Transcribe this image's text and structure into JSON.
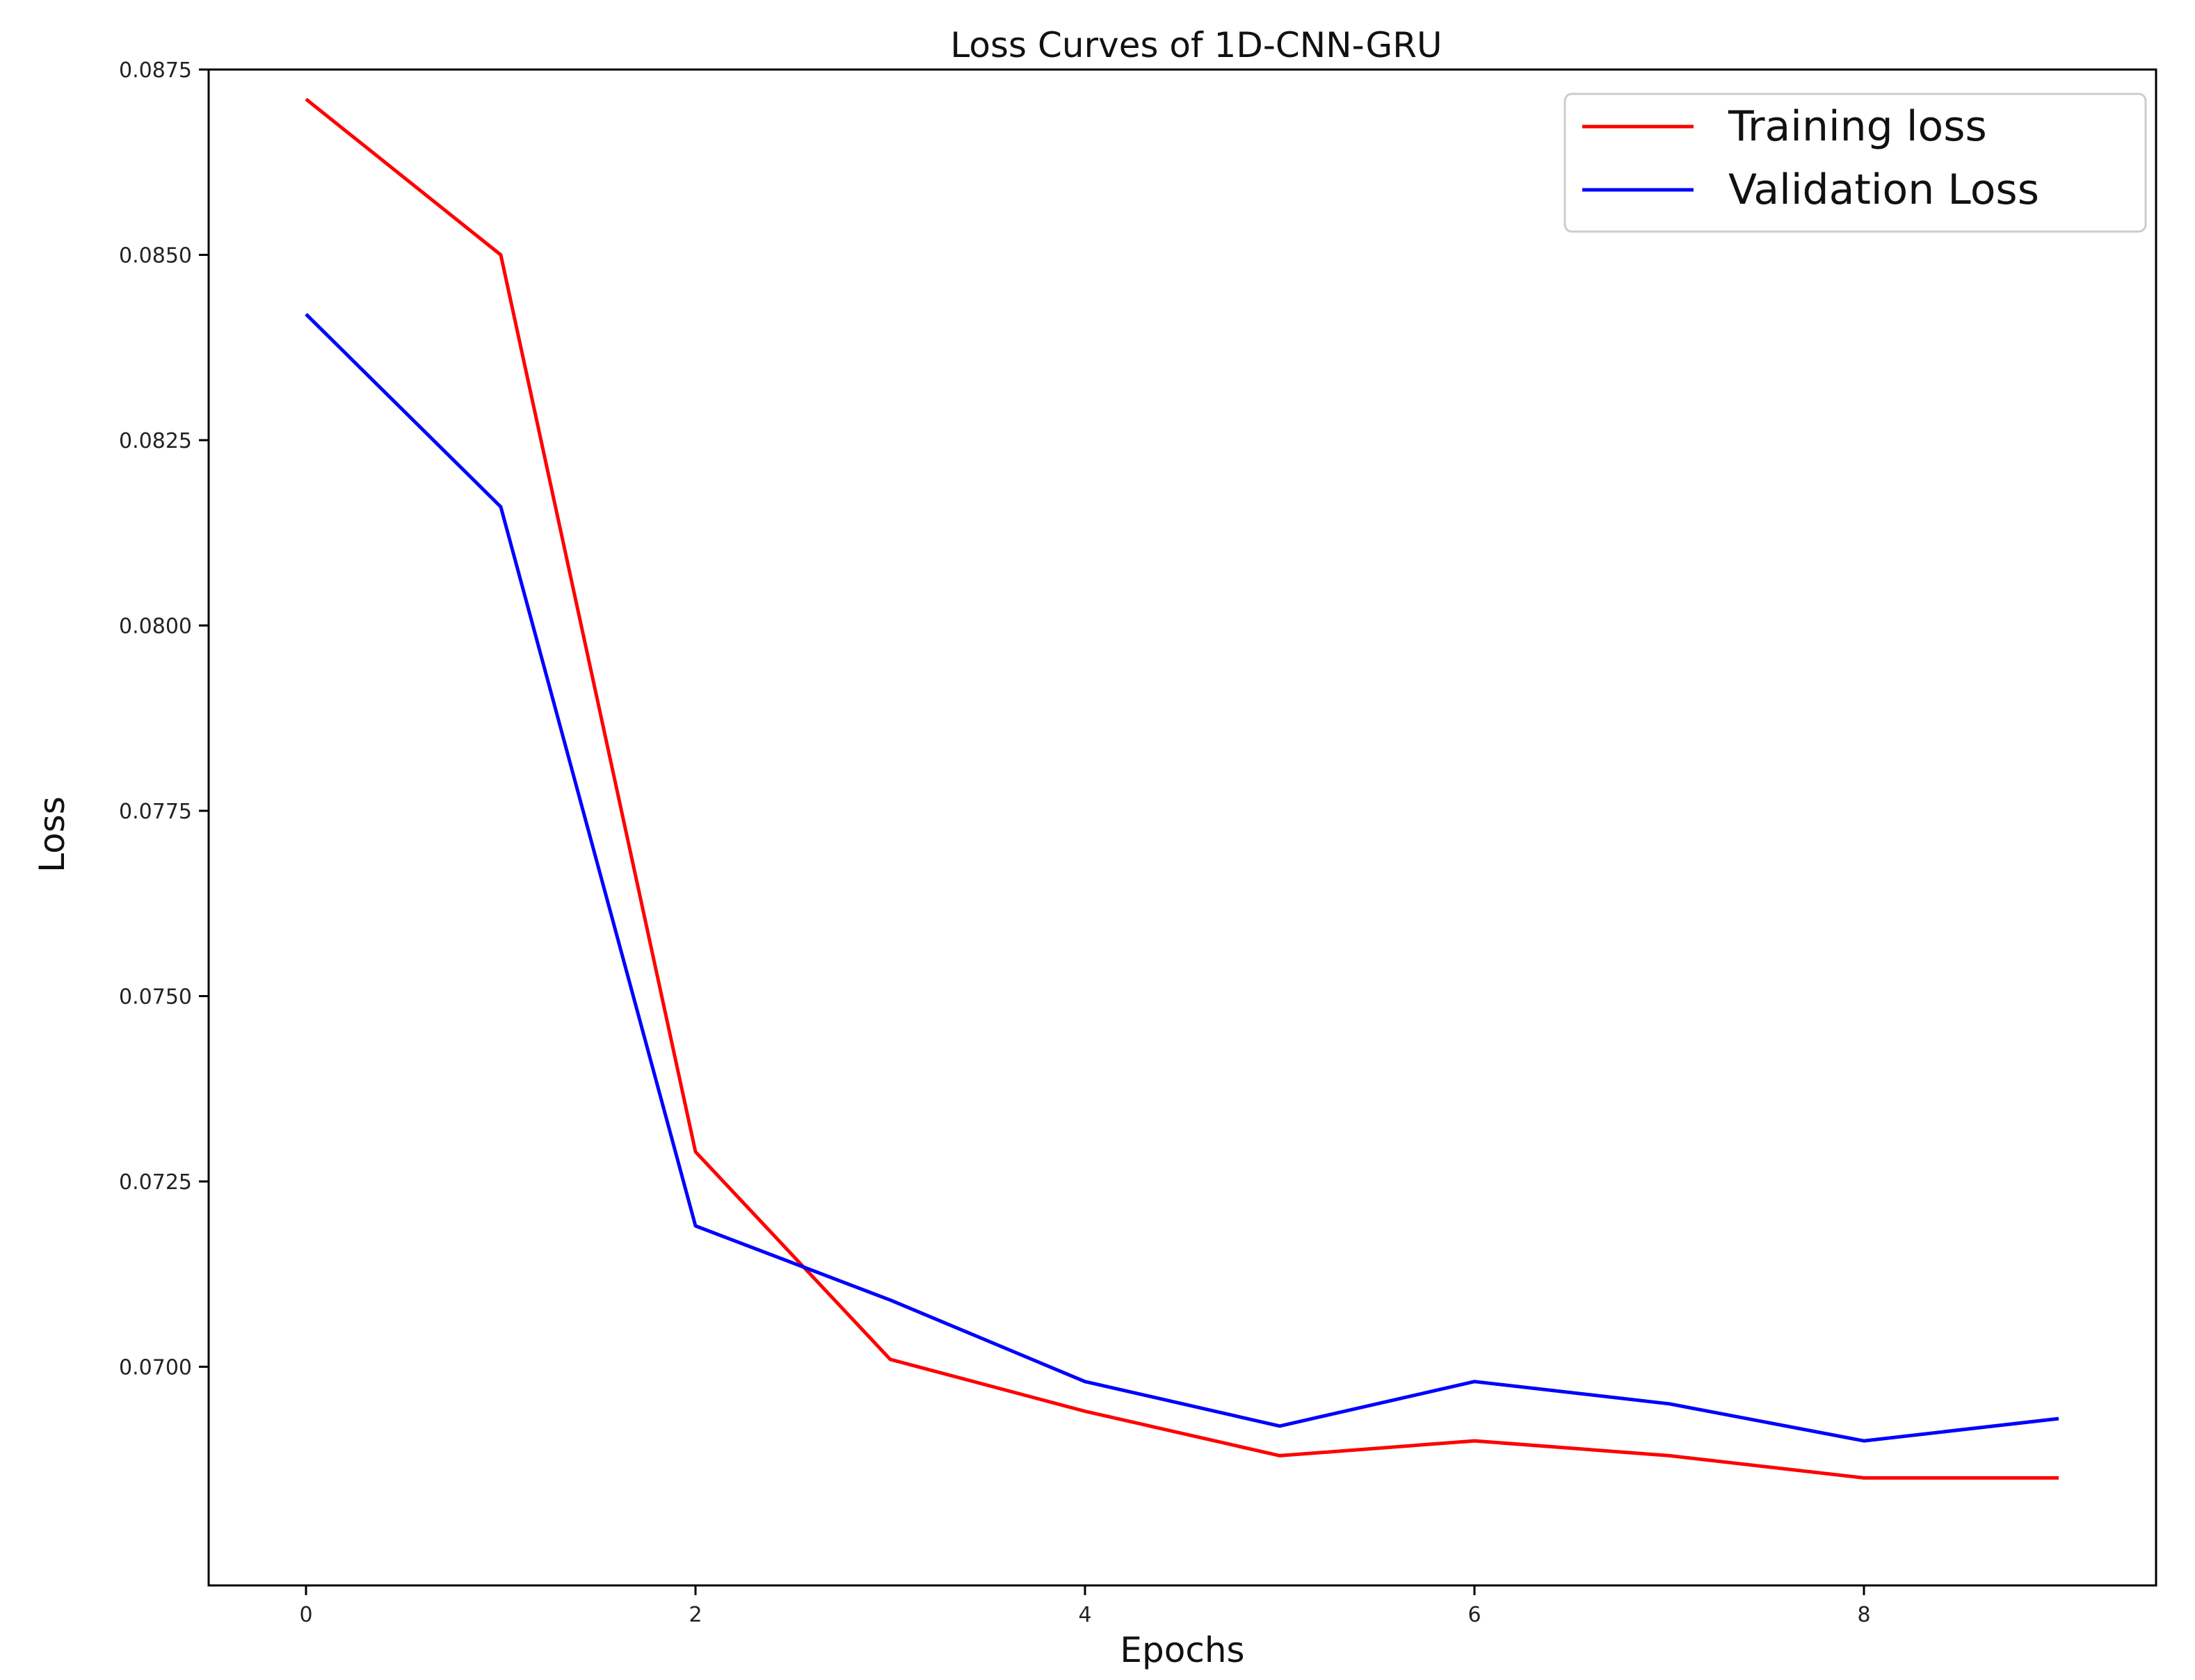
{
  "chart_data": {
    "type": "line",
    "title": "Loss Curves of 1D-CNN-GRU",
    "xlabel": "Epochs",
    "ylabel": "Loss",
    "x": [
      0,
      1,
      2,
      3,
      4,
      5,
      6,
      7,
      8,
      9
    ],
    "xlim": [
      -0.5,
      9.5
    ],
    "ylim": [
      0.06705,
      0.0875
    ],
    "xticks": [
      0,
      2,
      4,
      6,
      8
    ],
    "xtick_labels": [
      "0",
      "2",
      "4",
      "6",
      "8"
    ],
    "yticks": [
      0.07,
      0.0725,
      0.075,
      0.0775,
      0.08,
      0.0825,
      0.085,
      0.0875
    ],
    "ytick_labels": [
      "0.0700",
      "0.0725",
      "0.0750",
      "0.0775",
      "0.0800",
      "0.0825",
      "0.0850",
      "0.0875"
    ],
    "grid": false,
    "legend_position": "top-right",
    "series": [
      {
        "name": "Training loss",
        "color": "#ff0000",
        "values": [
          0.0871,
          0.085,
          0.0729,
          0.0701,
          0.0694,
          0.0688,
          0.069,
          0.0688,
          0.0685,
          0.0685
        ]
      },
      {
        "name": "Validation Loss",
        "color": "#0000ff",
        "values": [
          0.0842,
          0.0816,
          0.0719,
          0.0709,
          0.0698,
          0.0692,
          0.0698,
          0.0695,
          0.069,
          0.0693
        ]
      }
    ]
  }
}
